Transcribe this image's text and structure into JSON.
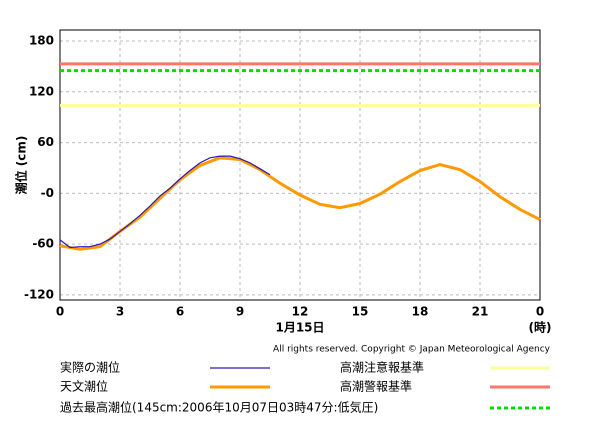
{
  "chart_data": {
    "type": "line",
    "y_label": "潮位 (cm)",
    "x_label": "1月15日",
    "x_unit": "(時)",
    "credit": "All rights reserved. Copyright © Japan Meteorological Agency",
    "xlim": [
      0,
      24
    ],
    "xticks": [
      0,
      3,
      6,
      9,
      12,
      15,
      18,
      21,
      {
        "value": 24,
        "label": "0"
      }
    ],
    "ylim": [
      -126,
      193
    ],
    "yticks": [
      -120,
      -60,
      {
        "value": 0,
        "label": "-0"
      },
      60,
      120,
      180
    ],
    "grid": true,
    "series": [
      {
        "name": "天文潮位",
        "color": "#ff9900",
        "x": [
          0,
          1,
          2,
          3,
          4,
          5,
          6,
          7,
          8,
          9,
          10,
          11,
          12,
          13,
          14,
          15,
          16,
          17,
          18,
          19,
          20,
          21,
          22,
          23,
          24
        ],
        "values": [
          -62,
          -66,
          -63,
          -45,
          -28,
          -6,
          16,
          33,
          42,
          40,
          28,
          12,
          -2,
          -13,
          -17,
          -12,
          -1,
          14,
          27,
          34,
          28,
          14,
          -4,
          -19,
          -31
        ]
      },
      {
        "name": "実際の潮位",
        "color": "#2a1ab0",
        "x": [
          0,
          0.5,
          1,
          1.5,
          2,
          2.5,
          3,
          3.5,
          4,
          4.5,
          5,
          5.5,
          6,
          6.5,
          7,
          7.5,
          8,
          8.5,
          9,
          9.5,
          10,
          10.5
        ],
        "values": [
          -55,
          -64,
          -63,
          -63,
          -60,
          -54,
          -45,
          -36,
          -26,
          -15,
          -3,
          6,
          17,
          27,
          36,
          42,
          44,
          44,
          41,
          36,
          29,
          22
        ]
      }
    ],
    "reference_lines": [
      {
        "name": "高潮注意報基準",
        "value": 104,
        "color": "#ffff99",
        "style": "solid"
      },
      {
        "name": "高潮警報基準",
        "value": 153,
        "color": "#ff7766",
        "style": "solid"
      },
      {
        "name": "過去最高潮位(145cm:2006年10月07日03時47分:低気圧)",
        "value": 145,
        "color": "#00dd00",
        "style": "dashed"
      }
    ]
  }
}
